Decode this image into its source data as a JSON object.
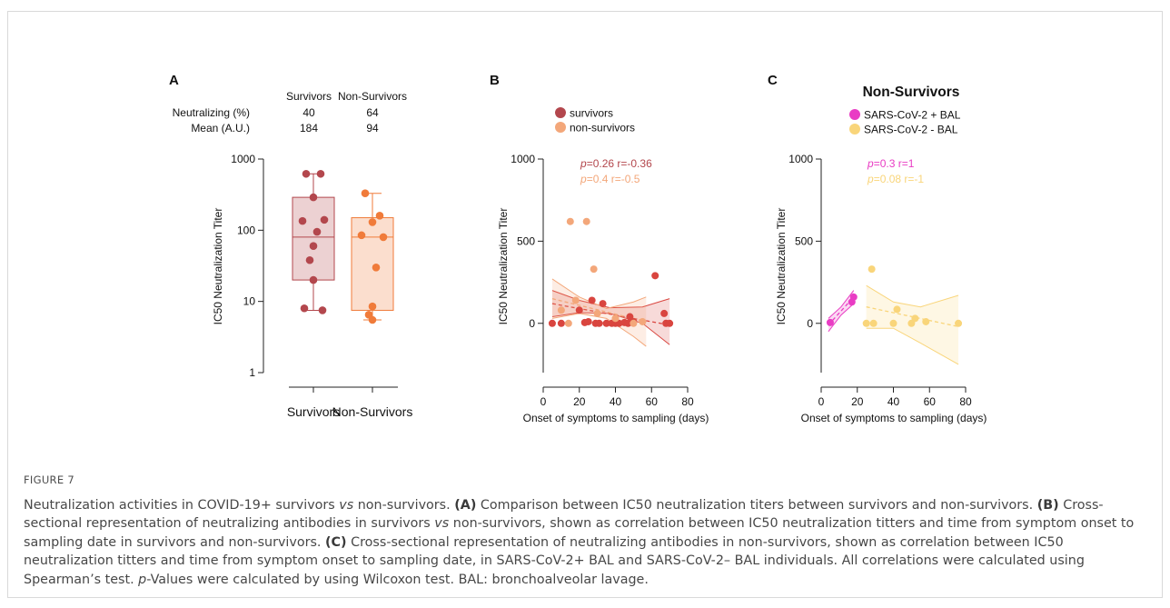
{
  "colors": {
    "survivors": "#b3474d",
    "non_survivors": "#f07b3a",
    "b_survivors": "#d9453f",
    "b_non_survivors": "#f3a77a",
    "c_pos_bal": "#e93cc4",
    "c_neg_bal": "#f9d57a",
    "axis": "#222222"
  },
  "chart_data": [
    {
      "panel": "A",
      "type": "box",
      "ylabel": "IC50 Neutralization Titer",
      "y_scale": "log",
      "ylim": [
        1,
        1000
      ],
      "y_ticks": [
        "1000",
        "100",
        "10",
        "1"
      ],
      "categories": [
        "Survivors",
        "Non-Survivors"
      ],
      "header": {
        "columns": [
          "Survivors",
          "Non-Survivors"
        ],
        "rows": [
          {
            "label": "Neutralizing (%)",
            "values": [
              "40",
              "64"
            ]
          },
          {
            "label": "Mean (A.U.)",
            "values": [
              "184",
              "94"
            ]
          }
        ]
      },
      "series": [
        {
          "name": "Survivors",
          "color_key": "survivors",
          "min": 7.5,
          "q1": 20,
          "median": 80,
          "q3": 290,
          "max": 620,
          "points": [
            620,
            620,
            290,
            135,
            140,
            95,
            60,
            38,
            20,
            8,
            7.5
          ]
        },
        {
          "name": "Non-Survivors",
          "color_key": "non_survivors",
          "min": 5.5,
          "q1": 7.5,
          "median": 80,
          "q3": 150,
          "max": 330,
          "points": [
            330,
            160,
            130,
            85,
            80,
            30,
            8.5,
            6.5,
            5.5
          ]
        }
      ]
    },
    {
      "panel": "B",
      "type": "scatter",
      "xlabel": "Onset of symptoms to sampling (days)",
      "ylabel": "IC50 Neutralization Titer",
      "xlim": [
        0,
        80
      ],
      "ylim": [
        -300,
        1000
      ],
      "x_ticks": [
        0,
        20,
        40,
        60,
        80
      ],
      "y_ticks": [
        0,
        500,
        1000
      ],
      "legend": [
        {
          "name": "survivors",
          "color_key": "survivors"
        },
        {
          "name": "non-survivors",
          "color_key": "b_non_survivors"
        }
      ],
      "annotations": [
        {
          "p": "p",
          "text": "=0.26 r=-0.36",
          "color_key": "survivors"
        },
        {
          "p": "p",
          "text": "=0.4 r=-0.5",
          "color_key": "b_non_survivors"
        }
      ],
      "series": [
        {
          "name": "survivors",
          "color_key": "b_survivors",
          "points": [
            [
              5,
              0
            ],
            [
              10,
              0
            ],
            [
              20,
              80
            ],
            [
              23,
              5
            ],
            [
              25,
              10
            ],
            [
              27,
              140
            ],
            [
              29,
              0
            ],
            [
              31,
              0
            ],
            [
              33,
              120
            ],
            [
              35,
              0
            ],
            [
              38,
              0
            ],
            [
              40,
              0
            ],
            [
              42,
              0
            ],
            [
              45,
              5
            ],
            [
              47,
              0
            ],
            [
              48,
              40
            ],
            [
              50,
              10
            ],
            [
              62,
              290
            ],
            [
              67,
              60
            ],
            [
              68,
              0
            ],
            [
              70,
              0
            ]
          ],
          "fit": [
            [
              5,
              120
            ],
            [
              70,
              -10
            ]
          ],
          "band_upper": [
            [
              5,
              200
            ],
            [
              20,
              140
            ],
            [
              37,
              95
            ],
            [
              55,
              100
            ],
            [
              70,
              150
            ]
          ],
          "band_lower": [
            [
              5,
              40
            ],
            [
              20,
              65
            ],
            [
              37,
              60
            ],
            [
              55,
              0
            ],
            [
              70,
              -130
            ]
          ]
        },
        {
          "name": "non-survivors",
          "color_key": "b_non_survivors",
          "points": [
            [
              15,
              620
            ],
            [
              24,
              620
            ],
            [
              28,
              330
            ],
            [
              10,
              80
            ],
            [
              18,
              140
            ],
            [
              30,
              60
            ],
            [
              40,
              30
            ],
            [
              50,
              0
            ],
            [
              55,
              10
            ],
            [
              14,
              0
            ]
          ],
          "fit": [
            [
              5,
              150
            ],
            [
              57,
              10
            ]
          ],
          "band_upper": [
            [
              5,
              270
            ],
            [
              20,
              160
            ],
            [
              35,
              90
            ],
            [
              50,
              130
            ],
            [
              57,
              160
            ]
          ],
          "band_lower": [
            [
              5,
              30
            ],
            [
              20,
              60
            ],
            [
              35,
              30
            ],
            [
              50,
              -80
            ],
            [
              57,
              -140
            ]
          ]
        }
      ]
    },
    {
      "panel": "C",
      "type": "scatter",
      "title": "Non-Survivors",
      "xlabel": "Onset of symptoms to sampling (days)",
      "ylabel": "IC50 Neutralization Titer",
      "xlim": [
        0,
        80
      ],
      "ylim": [
        -300,
        1000
      ],
      "x_ticks": [
        0,
        20,
        40,
        60,
        80
      ],
      "y_ticks": [
        0,
        500,
        1000
      ],
      "legend": [
        {
          "name": "SARS-CoV-2 + BAL",
          "color_key": "c_pos_bal"
        },
        {
          "name": "SARS-CoV-2 - BAL",
          "color_key": "c_neg_bal"
        }
      ],
      "annotations": [
        {
          "p": "p",
          "text": "=0.3 r=1",
          "color_key": "c_pos_bal"
        },
        {
          "p": "p",
          "text": "=0.08 r=-1",
          "color_key": "c_neg_bal"
        }
      ],
      "series": [
        {
          "name": "SARS-CoV-2 + BAL",
          "color_key": "c_pos_bal",
          "points": [
            [
              5,
              5
            ],
            [
              17,
              130
            ],
            [
              18,
              160
            ]
          ],
          "fit": [
            [
              4,
              -10
            ],
            [
              18,
              160
            ]
          ],
          "band_upper": [
            [
              4,
              30
            ],
            [
              11,
              100
            ],
            [
              18,
              200
            ]
          ],
          "band_lower": [
            [
              4,
              -50
            ],
            [
              11,
              50
            ],
            [
              18,
              120
            ]
          ]
        },
        {
          "name": "SARS-CoV-2 - BAL",
          "color_key": "c_neg_bal",
          "points": [
            [
              25,
              0
            ],
            [
              28,
              330
            ],
            [
              29,
              0
            ],
            [
              40,
              0
            ],
            [
              42,
              85
            ],
            [
              50,
              0
            ],
            [
              52,
              30
            ],
            [
              58,
              10
            ],
            [
              76,
              0
            ]
          ],
          "fit": [
            [
              25,
              100
            ],
            [
              76,
              -20
            ]
          ],
          "band_upper": [
            [
              25,
              230
            ],
            [
              40,
              130
            ],
            [
              55,
              100
            ],
            [
              76,
              170
            ]
          ],
          "band_lower": [
            [
              25,
              -30
            ],
            [
              40,
              -30
            ],
            [
              55,
              -120
            ],
            [
              76,
              -250
            ]
          ]
        }
      ]
    }
  ],
  "caption": {
    "label": "FIGURE 7",
    "parts": [
      {
        "t": "Neutralization activities in COVID-19+ survivors "
      },
      {
        "t": "vs",
        "i": true
      },
      {
        "t": " non-survivors. "
      },
      {
        "t": "(A)",
        "b": true
      },
      {
        "t": " Comparison between IC50 neutralization titers between survivors and non-survivors. "
      },
      {
        "t": "(B)",
        "b": true
      },
      {
        "t": " Cross-sectional representation of neutralizing antibodies in survivors "
      },
      {
        "t": "vs",
        "i": true
      },
      {
        "t": " non-survivors, shown as correlation between IC50 neutralization titters and time from symptom onset to sampling date in survivors and non-survivors. "
      },
      {
        "t": "(C)",
        "b": true
      },
      {
        "t": " Cross-sectional representation of neutralizing antibodies in non-survivors, shown as correlation between IC50 neutralization titters and time from symptom onset to sampling date, in SARS-CoV-2+ BAL and SARS-CoV-2– BAL individuals. All correlations were calculated using Spearman’s test. "
      },
      {
        "t": "p",
        "i": true
      },
      {
        "t": "-Values were calculated by using Wilcoxon test. BAL: bronchoalveolar lavage."
      }
    ]
  }
}
